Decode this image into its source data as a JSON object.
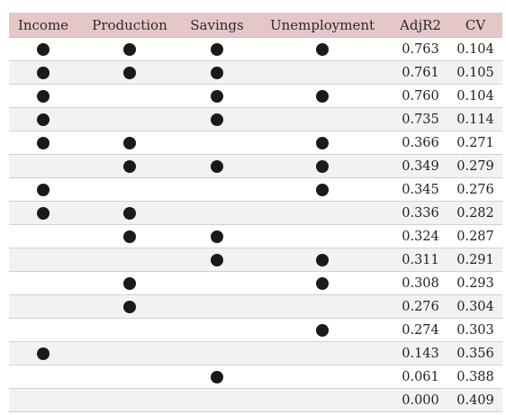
{
  "colors": {
    "header_bg": "#e6c7c9",
    "dot": "#1a1a1a",
    "row_stripe": "#f2f2f2"
  },
  "table": {
    "columns": [
      "Income",
      "Production",
      "Savings",
      "Unemployment",
      "AdjR2",
      "CV"
    ],
    "marker_icon": "filled-circle-icon",
    "rows": [
      {
        "income": true,
        "production": true,
        "savings": true,
        "unemployment": true,
        "adjr2": "0.763",
        "cv": "0.104"
      },
      {
        "income": true,
        "production": true,
        "savings": true,
        "unemployment": false,
        "adjr2": "0.761",
        "cv": "0.105"
      },
      {
        "income": true,
        "production": false,
        "savings": true,
        "unemployment": true,
        "adjr2": "0.760",
        "cv": "0.104"
      },
      {
        "income": true,
        "production": false,
        "savings": true,
        "unemployment": false,
        "adjr2": "0.735",
        "cv": "0.114"
      },
      {
        "income": true,
        "production": true,
        "savings": false,
        "unemployment": true,
        "adjr2": "0.366",
        "cv": "0.271"
      },
      {
        "income": false,
        "production": true,
        "savings": true,
        "unemployment": true,
        "adjr2": "0.349",
        "cv": "0.279"
      },
      {
        "income": true,
        "production": false,
        "savings": false,
        "unemployment": true,
        "adjr2": "0.345",
        "cv": "0.276"
      },
      {
        "income": true,
        "production": true,
        "savings": false,
        "unemployment": false,
        "adjr2": "0.336",
        "cv": "0.282"
      },
      {
        "income": false,
        "production": true,
        "savings": true,
        "unemployment": false,
        "adjr2": "0.324",
        "cv": "0.287"
      },
      {
        "income": false,
        "production": false,
        "savings": true,
        "unemployment": true,
        "adjr2": "0.311",
        "cv": "0.291"
      },
      {
        "income": false,
        "production": true,
        "savings": false,
        "unemployment": true,
        "adjr2": "0.308",
        "cv": "0.293"
      },
      {
        "income": false,
        "production": true,
        "savings": false,
        "unemployment": false,
        "adjr2": "0.276",
        "cv": "0.304"
      },
      {
        "income": false,
        "production": false,
        "savings": false,
        "unemployment": true,
        "adjr2": "0.274",
        "cv": "0.303"
      },
      {
        "income": true,
        "production": false,
        "savings": false,
        "unemployment": false,
        "adjr2": "0.143",
        "cv": "0.356"
      },
      {
        "income": false,
        "production": false,
        "savings": true,
        "unemployment": false,
        "adjr2": "0.061",
        "cv": "0.388"
      },
      {
        "income": false,
        "production": false,
        "savings": false,
        "unemployment": false,
        "adjr2": "0.000",
        "cv": "0.409"
      }
    ]
  }
}
